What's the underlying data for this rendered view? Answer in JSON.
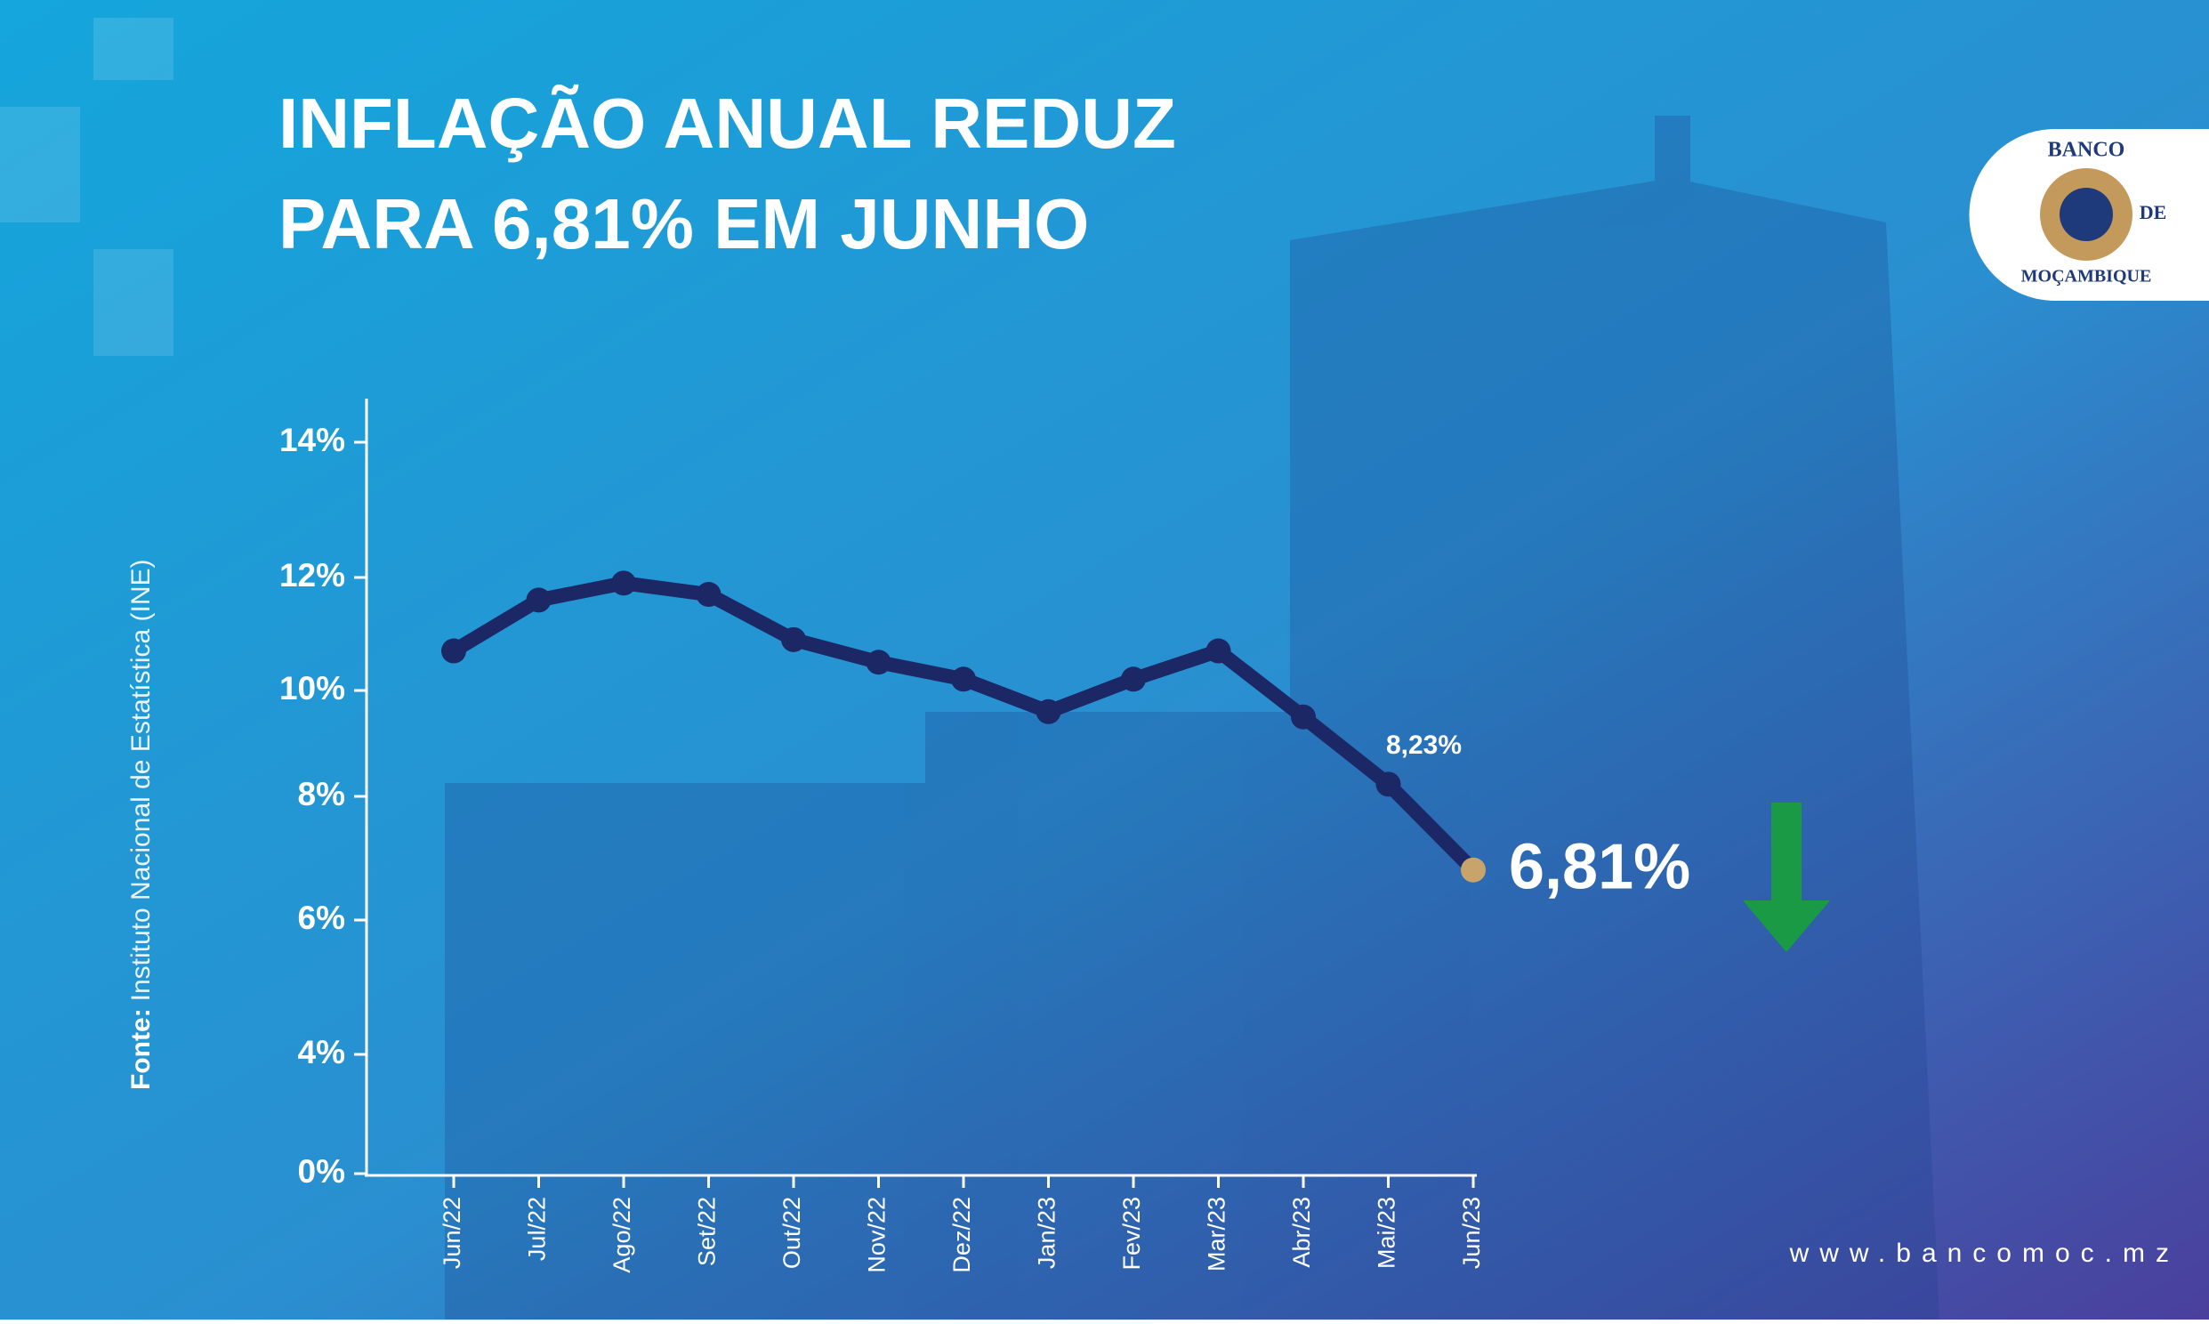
{
  "chart_data": {
    "type": "line",
    "title": [
      "INFLAÇÃO ANUAL REDUZ",
      "PARA 6,81% EM JUNHO"
    ],
    "categories": [
      "Jun/22",
      "Jul/22",
      "Ago/22",
      "Set/22",
      "Out/22",
      "Nov/22",
      "Dez/22",
      "Jan/23",
      "Fev/23",
      "Mar/23",
      "Abr/23",
      "Mai/23",
      "Jun/23"
    ],
    "values": [
      10.7,
      11.6,
      11.9,
      11.7,
      10.9,
      10.5,
      10.2,
      9.6,
      10.2,
      10.7,
      9.5,
      8.23,
      6.81
    ],
    "value_labels": [
      null,
      null,
      null,
      null,
      null,
      null,
      null,
      null,
      null,
      null,
      null,
      "8,23%",
      "6,81%"
    ],
    "color": "#1c2765",
    "last_point_color": "#c8a46a",
    "ylim": [
      0,
      14
    ],
    "yticks": [
      {
        "value": 0,
        "label": "0%"
      },
      {
        "value": 4,
        "label": "4%"
      },
      {
        "value": 6,
        "label": "6%"
      },
      {
        "value": 8,
        "label": "8%"
      },
      {
        "value": 10,
        "label": "10%"
      },
      {
        "value": 12,
        "label": "12%"
      },
      {
        "value": 14,
        "label": "14%"
      }
    ],
    "source_label": "Fonte:",
    "source": "Instituto Nacional de Estatística (INE)"
  },
  "logo": {
    "top": "BANCO",
    "middle": "DE",
    "bottom": "MOÇAMBIQUE"
  },
  "website": "www.bancomoc.mz"
}
